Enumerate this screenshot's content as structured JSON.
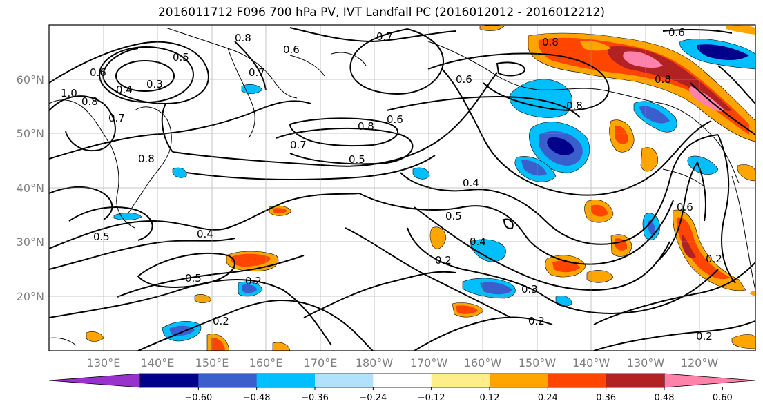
{
  "title": "2016011712 F096 700 hPa PV, IVT Landfall PC (2016012012 - 2016012212)",
  "map": {
    "lat_labels": [
      "60°N",
      "50°N",
      "40°N",
      "30°N",
      "20°N"
    ],
    "lon_labels": [
      "130°E",
      "140°E",
      "150°E",
      "160°E",
      "170°E",
      "180°W",
      "170°W",
      "160°W",
      "150°W",
      "140°W",
      "130°W",
      "120°W"
    ],
    "contour_labels": [
      "0.6",
      "0.7",
      "0.8",
      "0.6",
      "0.5",
      "0.4",
      "0.3",
      "1.0",
      "0.8",
      "0.7",
      "0.8",
      "0.6",
      "0.7",
      "0.8",
      "0.5",
      "0.8",
      "0.6",
      "0.8",
      "0.6",
      "0.4",
      "0.5",
      "0.4",
      "0.2",
      "0.4",
      "0.5",
      "0.2",
      "0.3",
      "0.2",
      "0.2",
      "0.2",
      "0.5",
      "0.6",
      "0.2",
      "0.7",
      "0.8"
    ],
    "grid": true
  },
  "colorbar": {
    "ticks": [
      "−0.60",
      "−0.48",
      "−0.36",
      "−0.24",
      "−0.12",
      "0.12",
      "0.24",
      "0.36",
      "0.48",
      "0.60"
    ],
    "colors": [
      "#9932cc",
      "#00008b",
      "#3a5fcd",
      "#00bfff",
      "#b0e2ff",
      "#ffffff",
      "#ffec8b",
      "#ffa500",
      "#ff4500",
      "#b22222",
      "#ff82ab"
    ]
  }
}
